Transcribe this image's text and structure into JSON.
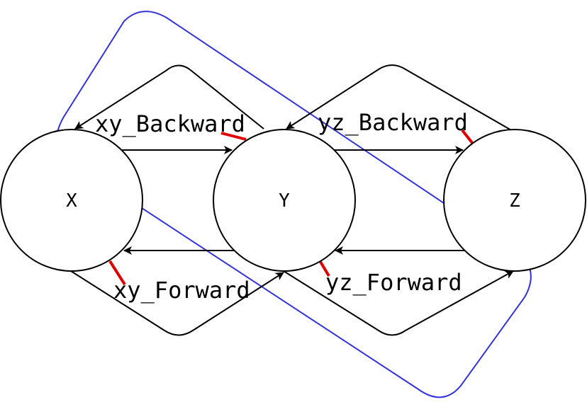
{
  "nodes": [
    {
      "id": "X",
      "label": "X"
    },
    {
      "id": "Y",
      "label": "Y"
    },
    {
      "id": "Z",
      "label": "Z"
    }
  ],
  "edge_labels": {
    "xy_backward": "xy_Backward",
    "yz_backward": "yz_Backward",
    "xy_forward": "xy_Forward",
    "yz_forward": "yz_Forward"
  },
  "colors": {
    "node_stroke": "#000000",
    "edge": "#000000",
    "marker": "#e00000",
    "region": "#3333dd"
  }
}
